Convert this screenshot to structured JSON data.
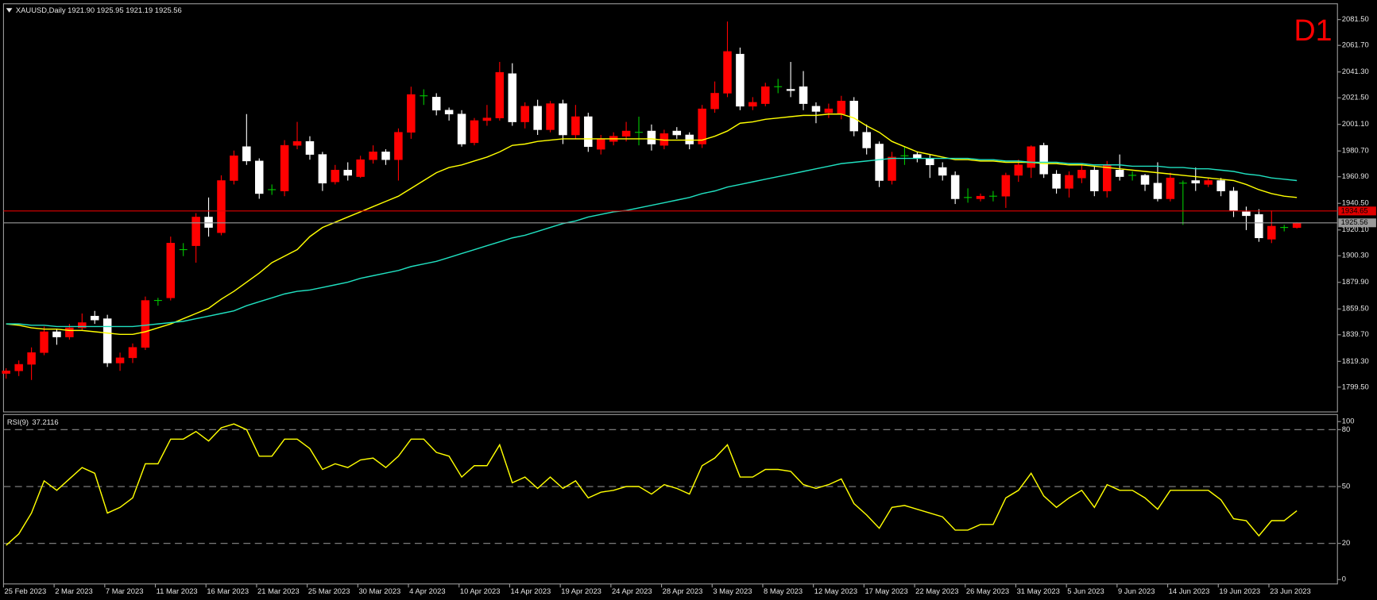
{
  "title": "XAUUSD,Daily 1921.90 1925.95 1921.19 1925.56",
  "timeframe": "D1",
  "chart_data": [
    {
      "type": "candlestick",
      "categories": [
        "25 Feb 2023",
        null,
        null,
        null,
        "2 Mar 2023",
        null,
        null,
        null,
        "7 Mar 2023",
        null,
        null,
        null,
        "11 Mar 2023",
        null,
        null,
        null,
        "16 Mar 2023",
        null,
        null,
        null,
        "21 Mar 2023",
        null,
        null,
        null,
        "25 Mar 2023",
        null,
        null,
        null,
        "30 Mar 2023",
        null,
        null,
        null,
        "4 Apr 2023",
        null,
        null,
        null,
        "10 Apr 2023",
        null,
        null,
        null,
        "14 Apr 2023",
        null,
        null,
        null,
        "19 Apr 2023",
        null,
        null,
        null,
        "24 Apr 2023",
        null,
        null,
        null,
        "28 Apr 2023",
        null,
        null,
        null,
        "3 May 2023",
        null,
        null,
        null,
        "8 May 2023",
        null,
        null,
        null,
        "12 May 2023",
        null,
        null,
        null,
        "17 May 2023",
        null,
        null,
        null,
        "22 May 2023",
        null,
        null,
        null,
        "26 May 2023",
        null,
        null,
        null,
        "31 May 2023",
        null,
        null,
        null,
        "5 Jun 2023",
        null,
        null,
        null,
        "9 Jun 2023",
        null,
        null,
        null,
        "14 Jun 2023",
        null,
        null,
        null,
        "19 Jun 2023",
        null,
        null,
        null,
        "23 Jun 2023",
        null,
        null
      ],
      "open": [
        1810,
        1812,
        1817,
        1826,
        1842,
        1838,
        1845,
        1854,
        1852,
        1818,
        1822,
        1830,
        1866,
        1868,
        1905,
        1908,
        1930,
        1918,
        1958,
        1984,
        1973,
        1951,
        1950,
        1985,
        1988,
        1978,
        1957,
        1966,
        1961,
        1974,
        1980,
        1974,
        1995,
        2023,
        2022,
        2012,
        2009,
        1987,
        2004,
        2006,
        2040,
        2003,
        2015,
        1997,
        2017,
        1993,
        2007,
        1982,
        1988,
        1992,
        1995,
        1996,
        1985,
        1996,
        1993,
        1986,
        2013,
        2025,
        2055,
        2015,
        2017,
        2030,
        2028,
        2030,
        2015,
        2010,
        2009,
        2019,
        1995,
        1986,
        1958,
        1977,
        1978,
        1975,
        1968,
        1962,
        1945,
        1944,
        1946,
        1946,
        1962,
        1968,
        1985,
        1963,
        1952,
        1960,
        1966,
        1950,
        1966,
        1962,
        1962,
        1956,
        1944,
        1956,
        1958,
        1955,
        1958,
        1950,
        1934,
        1932,
        1913,
        1922,
        1921.9
      ],
      "high": [
        1814,
        1820,
        1830,
        1846,
        1844,
        1848,
        1856,
        1858,
        1855,
        1826,
        1833,
        1869,
        1868,
        1915,
        1910,
        1933,
        1945,
        1962,
        1981,
        2009,
        1975,
        1955,
        1989,
        2003,
        1992,
        1980,
        1970,
        1972,
        1977,
        1985,
        1982,
        1998,
        2030,
        2028,
        2025,
        2014,
        2012,
        2006,
        2016,
        2049,
        2048,
        2018,
        2020,
        2019,
        2020,
        2016,
        2010,
        1993,
        1995,
        2003,
        2007,
        2001,
        1997,
        1999,
        1995,
        2016,
        2034,
        2080,
        2060,
        2022,
        2033,
        2036,
        2049,
        2042,
        2018,
        2017,
        2023,
        2022,
        2001,
        1988,
        1980,
        1984,
        1980,
        1978,
        1972,
        1965,
        1952,
        1948,
        1950,
        1964,
        1974,
        1985,
        1987,
        1966,
        1965,
        1970,
        1969,
        1973,
        1978,
        1965,
        1963,
        1972,
        1964,
        1958,
        1968,
        1960,
        1960,
        1953,
        1938,
        1936,
        1935,
        1924,
        1925.95
      ],
      "low": [
        1806,
        1808,
        1805,
        1824,
        1832,
        1836,
        1843,
        1848,
        1815,
        1812,
        1818,
        1828,
        1862,
        1866,
        1900,
        1895,
        1915,
        1916,
        1955,
        1970,
        1944,
        1947,
        1946,
        1982,
        1974,
        1950,
        1955,
        1958,
        1960,
        1971,
        1970,
        1958,
        1990,
        2016,
        2008,
        2004,
        1984,
        1985,
        2000,
        2004,
        2000,
        1998,
        1993,
        1995,
        1986,
        1990,
        1980,
        1978,
        1985,
        1988,
        1985,
        1981,
        1982,
        1990,
        1982,
        1983,
        2010,
        2022,
        2012,
        2012,
        2015,
        2025,
        2022,
        2012,
        2002,
        2006,
        2005,
        1992,
        1978,
        1953,
        1955,
        1970,
        1972,
        1960,
        1958,
        1940,
        1941,
        1942,
        1942,
        1937,
        1957,
        1960,
        1960,
        1948,
        1945,
        1956,
        1946,
        1945,
        1958,
        1958,
        1950,
        1942,
        1942,
        1924,
        1950,
        1953,
        1946,
        1930,
        1920,
        1911,
        1910,
        1919,
        1921.19
      ],
      "close": [
        1812,
        1817,
        1826,
        1842,
        1838,
        1845,
        1849,
        1851,
        1818,
        1822,
        1830,
        1866,
        1866,
        1910,
        1905,
        1930,
        1922,
        1958,
        1977,
        1973,
        1948,
        1951,
        1985,
        1988,
        1978,
        1956,
        1966,
        1962,
        1974,
        1980,
        1974,
        1995,
        2024,
        2023,
        2012,
        2009,
        1986,
        2004,
        2006,
        2041,
        2003,
        2015,
        1997,
        2017,
        1993,
        2007,
        1984,
        1990,
        1992,
        1996,
        1995,
        1986,
        1994,
        1993,
        1986,
        2013,
        2025,
        2057,
        2015,
        2018,
        2030,
        2030,
        2027,
        2017,
        2011,
        2013,
        2019,
        1996,
        1983,
        1958,
        1976,
        1977,
        1975,
        1970,
        1962,
        1944,
        1945,
        1946,
        1946,
        1962,
        1970,
        1984,
        1963,
        1952,
        1962,
        1966,
        1950,
        1970,
        1961,
        1962,
        1955,
        1944,
        1960,
        1956,
        1956,
        1958,
        1950,
        1935,
        1931,
        1914,
        1923,
        1922,
        1925.56
      ],
      "bull_color": "#ff0000",
      "bear_color": "#ffffff",
      "doji_color": "#00c800",
      "series": [
        {
          "color": "#ffff00",
          "values": [
            1848,
            1847,
            1845,
            1844,
            1844,
            1843,
            1843,
            1842,
            1841,
            1840,
            1840,
            1842,
            1845,
            1848,
            1852,
            1856,
            1860,
            1867,
            1873,
            1880,
            1887,
            1895,
            1900,
            1905,
            1915,
            1922,
            1926,
            1930,
            1934,
            1938,
            1942,
            1946,
            1952,
            1958,
            1964,
            1968,
            1970,
            1973,
            1976,
            1980,
            1985,
            1986,
            1988,
            1989,
            1990,
            1990,
            1990,
            1990,
            1990,
            1990,
            1990,
            1990,
            1989,
            1989,
            1989,
            1989,
            1992,
            1996,
            2002,
            2003,
            2005,
            2006,
            2007,
            2008,
            2008,
            2009,
            2009,
            2006,
            2000,
            1995,
            1988,
            1984,
            1980,
            1978,
            1976,
            1974,
            1974,
            1973,
            1973,
            1972,
            1972,
            1972,
            1971,
            1971,
            1970,
            1970,
            1969,
            1968,
            1967,
            1966,
            1965,
            1964,
            1963,
            1962,
            1961,
            1960,
            1959,
            1958,
            1955,
            1951,
            1948,
            1946,
            1945
          ]
        },
        {
          "color": "#20e0c0",
          "values": [
            1848,
            1848,
            1847,
            1847,
            1846,
            1846,
            1846,
            1846,
            1846,
            1846,
            1846,
            1847,
            1848,
            1849,
            1850,
            1852,
            1854,
            1856,
            1858,
            1862,
            1865,
            1868,
            1871,
            1873,
            1874,
            1876,
            1878,
            1880,
            1883,
            1885,
            1887,
            1889,
            1892,
            1894,
            1896,
            1899,
            1902,
            1905,
            1908,
            1911,
            1914,
            1916,
            1919,
            1922,
            1925,
            1927,
            1930,
            1932,
            1934,
            1935,
            1937,
            1939,
            1941,
            1943,
            1945,
            1948,
            1950,
            1953,
            1955,
            1957,
            1959,
            1961,
            1963,
            1965,
            1967,
            1969,
            1971,
            1972,
            1973,
            1974,
            1975,
            1975,
            1975,
            1975,
            1975,
            1975,
            1975,
            1974,
            1974,
            1973,
            1973,
            1972,
            1972,
            1972,
            1971,
            1971,
            1970,
            1970,
            1970,
            1969,
            1969,
            1969,
            1968,
            1968,
            1967,
            1967,
            1966,
            1965,
            1963,
            1962,
            1960,
            1959,
            1958
          ]
        }
      ],
      "price_lines": [
        {
          "value": 1934.65,
          "color": "#e00000"
        },
        {
          "value": 1925.56,
          "color": "#9a9a9a"
        }
      ],
      "ylim": [
        1781.17,
        2092.95
      ],
      "yticks": [
        {
          "value": 2081.5,
          "label": "2081.50"
        },
        {
          "value": 2061.7,
          "label": "2061.70"
        },
        {
          "value": 2041.3,
          "label": "2041.30"
        },
        {
          "value": 2021.5,
          "label": "2021.50"
        },
        {
          "value": 2001.1,
          "label": "2001.10"
        },
        {
          "value": 1980.7,
          "label": "1980.70"
        },
        {
          "value": 1960.9,
          "label": "1960.90"
        },
        {
          "value": 1940.5,
          "label": "1940.50"
        },
        {
          "value": 1920.1,
          "label": "1920.10"
        },
        {
          "value": 1900.3,
          "label": "1900.30"
        },
        {
          "value": 1879.9,
          "label": "1879.90"
        },
        {
          "value": 1859.5,
          "label": "1859.50"
        },
        {
          "value": 1839.7,
          "label": "1839.70"
        },
        {
          "value": 1819.3,
          "label": "1819.30"
        },
        {
          "value": 1799.5,
          "label": "1799.50"
        }
      ]
    },
    {
      "type": "line",
      "title": "RSI(9)",
      "color": "#ffff00",
      "values": [
        19,
        25,
        36,
        53,
        48,
        54,
        60,
        57,
        36,
        39,
        44,
        62,
        62,
        75,
        75,
        79,
        74,
        81,
        83,
        80,
        66,
        66,
        75,
        75,
        70,
        59,
        62,
        60,
        64,
        65,
        60,
        66,
        75,
        75,
        68,
        66,
        55,
        61,
        61,
        72,
        52,
        55,
        49,
        55,
        49,
        53,
        44,
        47,
        48,
        50,
        50,
        46,
        51,
        49,
        46,
        61,
        65,
        72,
        55,
        55,
        59,
        59,
        58,
        51,
        49,
        51,
        54,
        41,
        35,
        28,
        39,
        40,
        38,
        36,
        34,
        27,
        27,
        30,
        30,
        44,
        48,
        57,
        45,
        39,
        44,
        48,
        39,
        51,
        48,
        48,
        44,
        38,
        48,
        48,
        48,
        48,
        43,
        33,
        32,
        24,
        32,
        32,
        37.2116
      ],
      "levels": [
        20,
        50,
        80
      ],
      "ylim": [
        0,
        87.5
      ],
      "yticks": [
        0,
        20,
        50,
        80,
        100
      ]
    }
  ]
}
